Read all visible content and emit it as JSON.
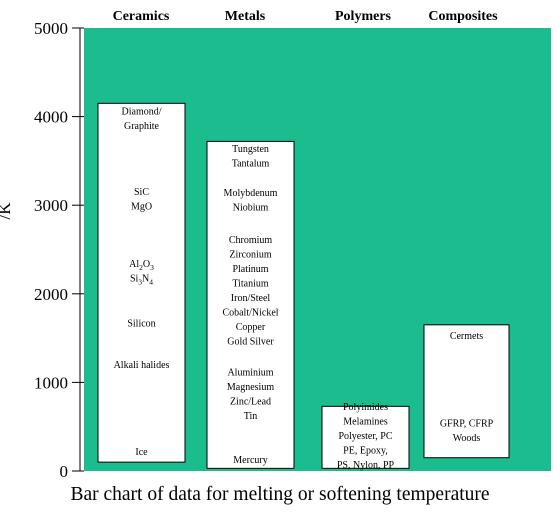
{
  "chart_data": {
    "type": "bar",
    "caption": "Bar chart of data for melting or softening temperature",
    "ylabel": "/K",
    "ylim": [
      0,
      5000
    ],
    "yticks": [
      "0",
      "1000",
      "2000",
      "3000",
      "4000",
      "5000"
    ],
    "colors": {
      "plot_background": "#1bbc8d",
      "bar_fill": "#ffffff",
      "bar_border": "#000000"
    },
    "grid": false,
    "categories": [
      "Ceramics",
      "Metals",
      "Polymers",
      "Composites"
    ],
    "series": [
      {
        "values": [
          {
            "low": 100,
            "high": 4150
          },
          {
            "low": 30,
            "high": 3720
          },
          {
            "low": 30,
            "high": 730
          },
          {
            "low": 150,
            "high": 1650
          }
        ]
      }
    ],
    "materials": [
      {
        "category": "Ceramics",
        "entries": [
          {
            "lines": [
              [
                {
                  "t": "Diamond/"
                }
              ],
              [
                {
                  "t": "Graphite"
                }
              ]
            ],
            "temp": 3980
          },
          {
            "lines": [
              [
                {
                  "t": "SiC"
                }
              ],
              [
                {
                  "t": "MgO"
                }
              ]
            ],
            "temp": 3070
          },
          {
            "lines": [
              [
                {
                  "t": "Al"
                },
                {
                  "t": "2",
                  "sub": true
                },
                {
                  "t": "O"
                },
                {
                  "t": "3",
                  "sub": true
                }
              ],
              [
                {
                  "t": "Si"
                },
                {
                  "t": "3",
                  "sub": true
                },
                {
                  "t": "N"
                },
                {
                  "t": "4",
                  "sub": true
                }
              ]
            ],
            "temp": 2260
          },
          {
            "lines": [
              [
                {
                  "t": "Silicon"
                }
              ]
            ],
            "temp": 1670
          },
          {
            "lines": [
              [
                {
                  "t": "Alkali halides"
                }
              ]
            ],
            "temp": 1200
          },
          {
            "lines": [
              [
                {
                  "t": "Ice"
                }
              ]
            ],
            "temp": 220
          }
        ]
      },
      {
        "category": "Metals",
        "entries": [
          {
            "lines": [
              [
                {
                  "t": "Tungsten"
                }
              ],
              [
                {
                  "t": "Tantalum"
                }
              ]
            ],
            "temp": 3560
          },
          {
            "lines": [
              [
                {
                  "t": "Molybdenum"
                }
              ],
              [
                {
                  "t": "Niobium"
                }
              ]
            ],
            "temp": 3060
          },
          {
            "lines": [
              [
                {
                  "t": "Chromium"
                }
              ],
              [
                {
                  "t": "Zirconium"
                }
              ],
              [
                {
                  "t": "Platinum"
                }
              ],
              [
                {
                  "t": "Titanium"
                }
              ],
              [
                {
                  "t": "Iron/Steel"
                }
              ],
              [
                {
                  "t": "Cobalt/Nickel"
                }
              ],
              [
                {
                  "t": "Copper"
                }
              ],
              [
                {
                  "t": "Gold Silver"
                }
              ]
            ],
            "temp": 2040
          },
          {
            "lines": [
              [
                {
                  "t": "Aluminium"
                }
              ],
              [
                {
                  "t": "Magnesium"
                }
              ],
              [
                {
                  "t": "Zinc/Lead"
                }
              ],
              [
                {
                  "t": "Tin"
                }
              ]
            ],
            "temp": 870
          },
          {
            "lines": [
              [
                {
                  "t": "Mercury"
                }
              ]
            ],
            "temp": 130
          }
        ]
      },
      {
        "category": "Polymers",
        "entries": [
          {
            "lines": [
              [
                {
                  "t": "Polyimides"
                }
              ],
              [
                {
                  "t": "Melamines"
                }
              ],
              [
                {
                  "t": "Polyester, PC"
                }
              ],
              [
                {
                  "t": "PE, Epoxy,"
                }
              ],
              [
                {
                  "t": "PS, Nylon, PP"
                }
              ]
            ],
            "temp": 400
          }
        ]
      },
      {
        "category": "Composites",
        "entries": [
          {
            "lines": [
              [
                {
                  "t": "Cermets"
                }
              ]
            ],
            "temp": 1530
          },
          {
            "lines": [
              [
                {
                  "t": "GFRP, CFRP"
                }
              ],
              [
                {
                  "t": "Woods"
                }
              ]
            ],
            "temp": 460
          }
        ]
      }
    ]
  }
}
